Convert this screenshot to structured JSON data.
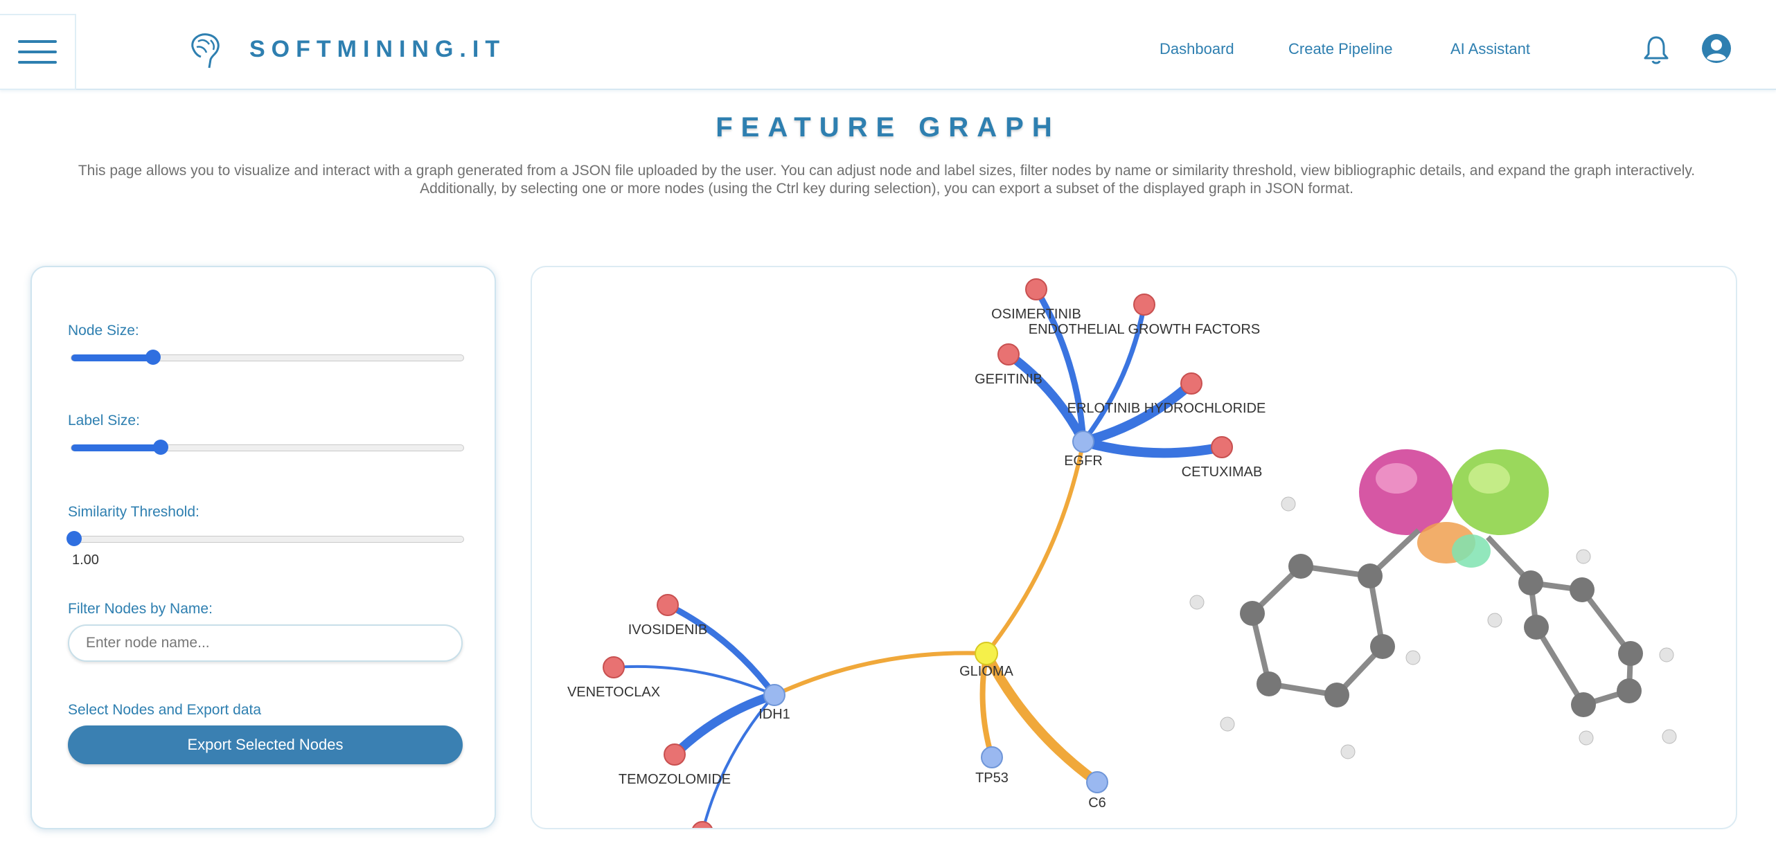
{
  "header": {
    "brand": "SOFTMINING.IT",
    "nav": [
      "Dashboard",
      "Create Pipeline",
      "AI Assistant"
    ],
    "icons": [
      "menu-icon",
      "brain-logo-icon",
      "bell-icon",
      "user-avatar-icon"
    ],
    "accent_color": "#2e7fb0"
  },
  "page": {
    "title": "FEATURE GRAPH",
    "description": "This page allows you to visualize and interact with a graph generated from a JSON file uploaded by the user. You can adjust node and label sizes, filter nodes by name or similarity threshold, view bibliographic details, and expand the graph interactively. Additionally, by selecting one or more nodes (using the Ctrl key during selection), you can export a subset of the displayed graph in JSON format."
  },
  "controls": {
    "node_size_label": "Node Size:",
    "node_size_level": 0.2,
    "label_size_label": "Label Size:",
    "label_size_level": 0.22,
    "threshold_label": "Similarity Threshold:",
    "threshold_level": 0.0,
    "threshold_value": "1.00",
    "filter_label": "Filter Nodes by Name:",
    "filter_placeholder": "Enter node name...",
    "export_section_label": "Select Nodes and Export data",
    "export_button": "Export Selected Nodes"
  },
  "graph": {
    "nodes": [
      {
        "id": "GLIOMA",
        "label": "GLIOMA",
        "type": "center"
      },
      {
        "id": "EGFR",
        "label": "EGFR",
        "type": "gene"
      },
      {
        "id": "IDH1",
        "label": "IDH1",
        "type": "gene"
      },
      {
        "id": "TP53",
        "label": "TP53",
        "type": "gene"
      },
      {
        "id": "C6",
        "label": "C6",
        "type": "gene"
      },
      {
        "id": "OSIMERTINIB",
        "label": "OSIMERTINIB",
        "type": "drug"
      },
      {
        "id": "EGF",
        "label": "ENDOTHELIAL GROWTH FACTORS",
        "type": "drug"
      },
      {
        "id": "GEFITINIB",
        "label": "GEFITINIB",
        "type": "drug"
      },
      {
        "id": "ERLOTINIB",
        "label": "ERLOTINIB HYDROCHLORIDE",
        "type": "drug"
      },
      {
        "id": "CETUXIMAB",
        "label": "CETUXIMAB",
        "type": "drug"
      },
      {
        "id": "IVOSIDENIB",
        "label": "IVOSIDENIB",
        "type": "drug"
      },
      {
        "id": "VENETOCLAX",
        "label": "VENETOCLAX",
        "type": "drug"
      },
      {
        "id": "TEMOZOLOMIDE",
        "label": "TEMOZOLOMIDE",
        "type": "drug"
      },
      {
        "id": "IDH1_EXTRA",
        "label": "",
        "type": "drug"
      }
    ],
    "edges": [
      {
        "from": "GLIOMA",
        "to": "EGFR",
        "color": "orange"
      },
      {
        "from": "GLIOMA",
        "to": "IDH1",
        "color": "orange"
      },
      {
        "from": "GLIOMA",
        "to": "TP53",
        "color": "orange"
      },
      {
        "from": "GLIOMA",
        "to": "C6",
        "color": "orange"
      },
      {
        "from": "EGFR",
        "to": "OSIMERTINIB",
        "color": "blue"
      },
      {
        "from": "EGFR",
        "to": "EGF",
        "color": "blue"
      },
      {
        "from": "EGFR",
        "to": "GEFITINIB",
        "color": "blue"
      },
      {
        "from": "EGFR",
        "to": "ERLOTINIB",
        "color": "blue"
      },
      {
        "from": "EGFR",
        "to": "CETUXIMAB",
        "color": "blue"
      },
      {
        "from": "IDH1",
        "to": "IVOSIDENIB",
        "color": "blue"
      },
      {
        "from": "IDH1",
        "to": "VENETOCLAX",
        "color": "blue"
      },
      {
        "from": "IDH1",
        "to": "TEMOZOLOMIDE",
        "color": "blue"
      },
      {
        "from": "IDH1",
        "to": "IDH1_EXTRA",
        "color": "blue"
      }
    ],
    "colors": {
      "center": "#f5f04a",
      "gene": "#9ab8f0",
      "drug": "#e87272",
      "edge_gene": "#f0a83a",
      "edge_drug": "#3a74e0"
    }
  }
}
